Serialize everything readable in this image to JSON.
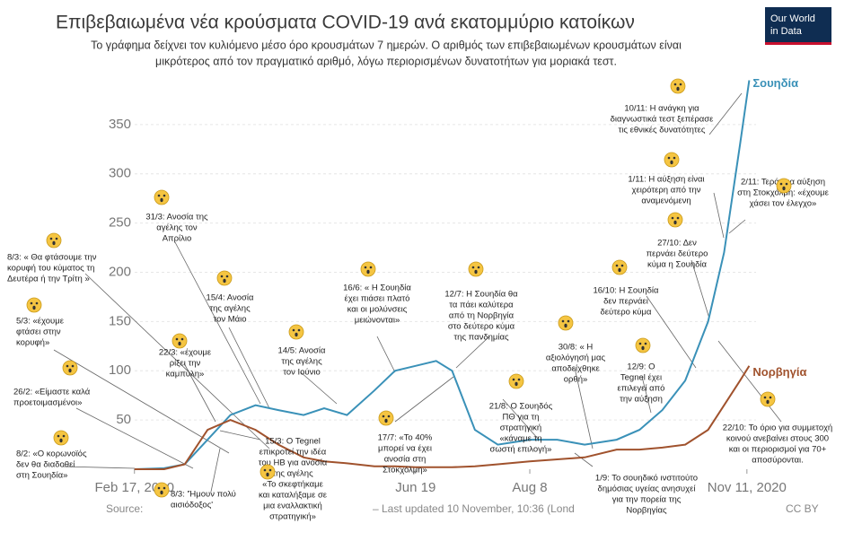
{
  "chart_data": {
    "type": "line",
    "title": "Επιβεβαιωμένα νέα κρούσματα  COVID-19 ανά εκατομμύριο κατοίκων",
    "subtitle": [
      "Το γράφημα δείχνει τον κυλιόμενο μέσο όρο κρουσμάτων 7 ημερών. Ο αριθμός των επιβεβαιωμένων κρουσμάτων είναι",
      "μικρότερος από τον πραγματικό αριθμό, λόγω περιορισμένων δυνατοτήτων για μοριακά τεστ."
    ],
    "logo": [
      "Our World",
      "in Data"
    ],
    "source": "Source:",
    "updated": "– Last updated 10 November, 10:36 (Lond",
    "license": "CC BY",
    "x": [
      "2020-02-17",
      "2020-03-01",
      "2020-03-10",
      "2020-03-20",
      "2020-03-30",
      "2020-04-10",
      "2020-04-20",
      "2020-05-01",
      "2020-05-10",
      "2020-05-20",
      "2020-06-01",
      "2020-06-10",
      "2020-06-19",
      "2020-06-28",
      "2020-07-05",
      "2020-07-15",
      "2020-07-25",
      "2020-08-08",
      "2020-08-20",
      "2020-09-01",
      "2020-09-15",
      "2020-09-25",
      "2020-10-05",
      "2020-10-15",
      "2020-10-25",
      "2020-11-01",
      "2020-11-08",
      "2020-11-12"
    ],
    "series": [
      {
        "name": "Σουηδία",
        "color": "#3a91b8",
        "values": [
          0,
          1,
          5,
          30,
          55,
          65,
          60,
          55,
          62,
          55,
          80,
          100,
          105,
          110,
          100,
          40,
          25,
          30,
          30,
          25,
          30,
          40,
          60,
          90,
          150,
          220,
          330,
          395
        ]
      },
      {
        "name": "Νορβηγία",
        "color": "#a0522d",
        "values": [
          0,
          0,
          5,
          40,
          50,
          40,
          25,
          12,
          8,
          6,
          3,
          3,
          2,
          2,
          2,
          3,
          5,
          8,
          10,
          12,
          20,
          20,
          22,
          25,
          40,
          65,
          90,
          105
        ]
      }
    ],
    "xlim": [
      "2020-02-01",
      "2020-11-15"
    ],
    "xticks": [
      {
        "value": "2020-02-17",
        "label": "Feb 17, 2020"
      },
      {
        "value": "2020-06-19",
        "label": "Jun 19"
      },
      {
        "value": "2020-08-08",
        "label": "Aug 8"
      },
      {
        "value": "2020-11-11",
        "label": "Nov 11, 2020"
      }
    ],
    "ylim": [
      0,
      400
    ],
    "yticks": [
      50,
      100,
      150,
      200,
      250,
      300,
      350
    ],
    "grid": true,
    "annotations": [
      {
        "lines": [
          "8/3: « Θα φτάσουμε την",
          "κορυφή του κύματος τη",
          "Δευτέρα ή την Τρίτη »"
        ]
      },
      {
        "lines": [
          "5/3: «έχουμε",
          "φτάσει στην",
          "κορυφή»"
        ]
      },
      {
        "lines": [
          "26/2: «Είμαστε καλά",
          "προετοιμασμένοι»"
        ]
      },
      {
        "lines": [
          "8/2: «Ο κορωνοϊός",
          "δεν θα διαδοθεί",
          "στη Σουηδία»"
        ]
      },
      {
        "lines": [
          "31/3: Ανοσία της",
          "αγέλης τον",
          "Απρίλιο"
        ]
      },
      {
        "lines": [
          "15/4: Ανοσία",
          "της αγέλης",
          "τον Μάιο"
        ]
      },
      {
        "lines": [
          "22/3: «έχουμε",
          "ρίξει την",
          "καμπύλη»"
        ]
      },
      {
        "lines": [
          "14/5: Ανοσία",
          "της αγέλης",
          "τον Ιούνιο"
        ]
      },
      {
        "lines": [
          "16/6: « Η Σουηδία",
          "έχει πιάσει πλατό",
          "και οι μολύνσεις",
          "μειώνονται»"
        ]
      },
      {
        "lines": [
          "15/3: Ο Tegnel",
          "επικροτεί την ιδέα",
          "του ΗΒ για ανοσία",
          "της αγέλης",
          "«Το σκεφτήκαμε",
          "και καταλήξαμε σε",
          "μια εναλλακτική",
          "στρατηγική»"
        ]
      },
      {
        "lines": [
          "8/3: 'Ήμουν πολύ",
          "αισιόδοξος'"
        ]
      },
      {
        "lines": [
          "17/7: «Το 40%",
          "μπορεί να έχει",
          "ανοσία στη",
          "Στοκχόλμη»"
        ]
      },
      {
        "lines": [
          "12/7: Η Σουηδία θα",
          "τα πάει καλύτερα",
          "από τη Νορβηγία",
          "στο δεύτερο κύμα",
          "της πανδημίας"
        ]
      },
      {
        "lines": [
          "21/8: Ο Σουηδός",
          "ΠΘ για τη",
          "στρατηγική",
          "«κάναμε τη",
          "σωστή επιλογή»"
        ]
      },
      {
        "lines": [
          "30/8: « Η",
          "αξιολόγησή μας",
          "αποδείχθηκε",
          "ορθή»"
        ]
      },
      {
        "lines": [
          "16/10: Η Σουηδία",
          "δεν περνάει",
          "δεύτερο κύμα"
        ]
      },
      {
        "lines": [
          "12/9: Ο",
          "Tegnel έχει",
          "επιλεγεί από",
          "την αύξηση"
        ]
      },
      {
        "lines": [
          "1/9: Το σουηδικό ινστιτούτο",
          "δημόσιας υγείας ανησυχεί",
          "για την πορεία της",
          "Νορβηγίας"
        ]
      },
      {
        "lines": [
          "10/11: Η ανάγκη για",
          "διαγνωστικά τεστ ξεπέρασε",
          "τις εθνικές δυνατότητες"
        ]
      },
      {
        "lines": [
          "1/11: Η αύξηση είναι",
          "χειρότερη από την",
          "αναμενόμενη"
        ]
      },
      {
        "lines": [
          "27/10: Δεν",
          "περνάει δεύτερο",
          "κύμα η Σουηδία"
        ]
      },
      {
        "lines": [
          "2/11: Τεράστια αύξηση",
          "στη Στοκχόλμη: «έχουμε",
          "χάσει τον έλεγχο»"
        ]
      },
      {
        "lines": [
          "22/10: Το όριο για συμμετοχή",
          "κοινού ανεβαίνει στους 300",
          "και οι περιορισμοί για 70+",
          "αποσύρονται."
        ]
      }
    ]
  }
}
